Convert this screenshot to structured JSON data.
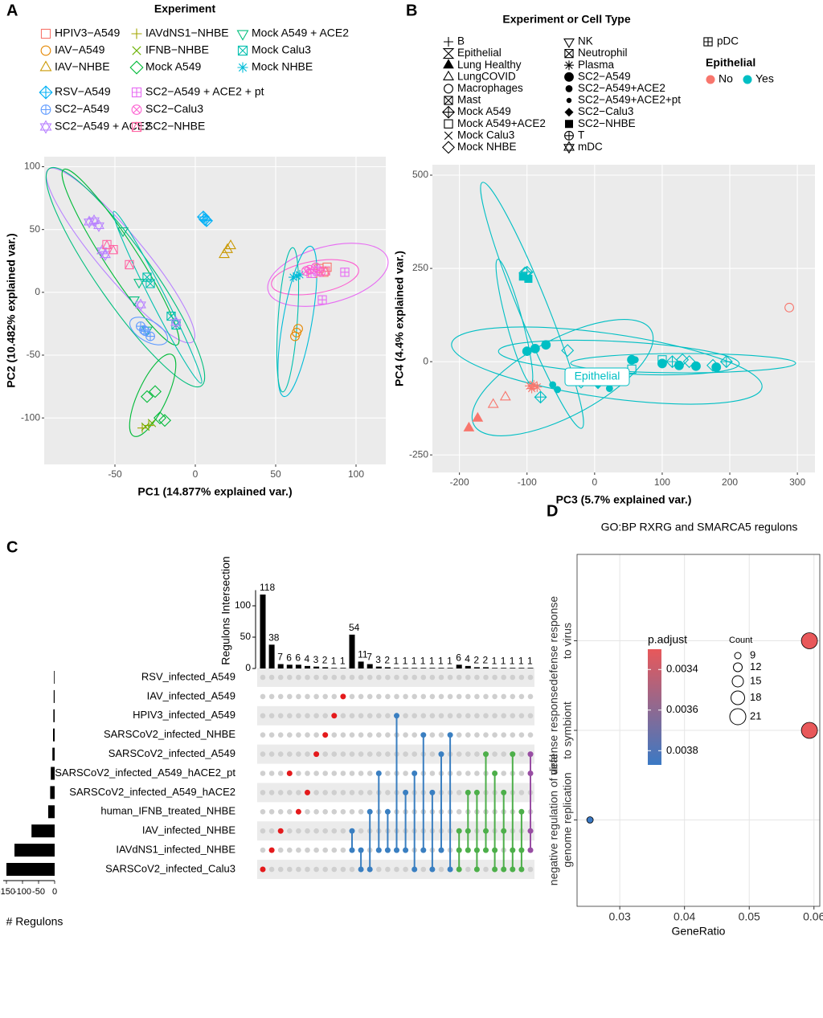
{
  "chart_data": [
    {
      "panel": "A",
      "type": "scatter",
      "legend_title": "Experiment",
      "xlabel": "PC1 (14.877% explained var.)",
      "ylabel": "PC2 (10.482% explained var.)",
      "xlim": [
        -94,
        118.5
      ],
      "ylim": [
        -137,
        108
      ],
      "xticks": [
        -50,
        0,
        50,
        100
      ],
      "yticks": [
        -100,
        -50,
        0,
        50,
        100
      ],
      "grid": true,
      "series": [
        {
          "name": "HPIV3−A549",
          "color": "#F8766D",
          "marker": "square",
          "x": [
            77,
            80,
            73,
            82
          ],
          "values": [
            19,
            16,
            15,
            20
          ]
        },
        {
          "name": "IAV−A549",
          "color": "#E58700",
          "marker": "circle",
          "x": [
            63,
            62,
            64
          ],
          "values": [
            -32,
            -35,
            -29
          ]
        },
        {
          "name": "IAV−NHBE",
          "color": "#C99800",
          "marker": "triangle",
          "x": [
            20,
            22,
            18
          ],
          "values": [
            34,
            37,
            30
          ]
        },
        {
          "name": "IAVdNS1−NHBE",
          "color": "#A3A500",
          "marker": "plus",
          "x": [
            -33,
            -29
          ],
          "values": [
            -108,
            -106
          ]
        },
        {
          "name": "IFNB−NHBE",
          "color": "#6BB100",
          "marker": "cross",
          "x": [
            -27,
            -31
          ],
          "values": [
            -104,
            -107
          ]
        },
        {
          "name": "Mock A549",
          "color": "#00BA38",
          "marker": "diamond",
          "x": [
            -30,
            -25,
            -22,
            -19
          ],
          "values": [
            -83,
            -79,
            -100,
            -102
          ]
        },
        {
          "name": "Mock A549 + ACE2",
          "color": "#00BF7D",
          "marker": "triangle-down",
          "x": [
            -45,
            -38,
            -35,
            -30
          ],
          "values": [
            49,
            -6,
            8,
            -30
          ]
        },
        {
          "name": "Mock Calu3",
          "color": "#00C0AF",
          "marker": "square-cross",
          "x": [
            -30,
            -28,
            -15,
            -12
          ],
          "values": [
            12,
            7,
            -19,
            -26
          ]
        },
        {
          "name": "Mock NHBE",
          "color": "#00BCD8",
          "marker": "asterisk",
          "x": [
            61,
            63,
            65
          ],
          "values": [
            12,
            13,
            14
          ]
        },
        {
          "name": "RSV−A549",
          "color": "#00B0F6",
          "marker": "diamond-plus",
          "x": [
            5,
            7,
            6
          ],
          "values": [
            60,
            57,
            58
          ]
        },
        {
          "name": "SC2−A549",
          "color": "#619CFF",
          "marker": "circle-plus",
          "x": [
            -34,
            -31,
            -28,
            -32
          ],
          "values": [
            -27,
            -31,
            -35,
            -30
          ]
        },
        {
          "name": "SC2−A549 + ACE2",
          "color": "#B983FF",
          "marker": "star6",
          "x": [
            -66,
            -63,
            -60,
            -58,
            -56,
            -34,
            -12
          ],
          "values": [
            56,
            57,
            53,
            33,
            30,
            -10,
            -24
          ]
        },
        {
          "name": "SC2−A549 + ACE2 + pt",
          "color": "#E76BF3",
          "marker": "square-plus",
          "x": [
            79,
            93,
            72,
            76
          ],
          "values": [
            -6,
            16,
            15,
            17
          ]
        },
        {
          "name": "SC2−Calu3",
          "color": "#FD61D1",
          "marker": "circle-cross",
          "x": [
            75,
            71,
            78,
            69
          ],
          "values": [
            20,
            18,
            16,
            17
          ]
        },
        {
          "name": "SC2−NHBE",
          "color": "#FF67A4",
          "marker": "square-triangle",
          "x": [
            -41,
            -51,
            -55,
            81
          ],
          "values": [
            22,
            34,
            38,
            17
          ]
        }
      ]
    },
    {
      "panel": "B",
      "type": "scatter",
      "legend_title": "Experiment or Cell Type",
      "color_legend_title": "Epithelial",
      "groups": [
        {
          "name": "No",
          "color": "#F8766D"
        },
        {
          "name": "Yes",
          "color": "#00BFC4"
        }
      ],
      "annotation": "Epithelial",
      "xlabel": "PC3 (5.7% explained var.)",
      "ylabel": "PC4 (4.4% explained var.)",
      "xlim": [
        -240,
        326
      ],
      "ylim": [
        -297,
        528
      ],
      "xticks": [
        -200,
        -100,
        0,
        100,
        200,
        300
      ],
      "yticks": [
        -250,
        0,
        250,
        500
      ],
      "grid": true,
      "series": [
        {
          "name": "B",
          "marker": "plus",
          "group": "No",
          "x": [],
          "values": []
        },
        {
          "name": "Epithelial",
          "marker": "hourglass",
          "group": "Yes",
          "x": [],
          "values": []
        },
        {
          "name": "Lung Healthy",
          "marker": "filled-triangle",
          "group": "No",
          "x": [
            -186,
            -173
          ],
          "values": [
            -178,
            -152
          ]
        },
        {
          "name": "LungCOVID",
          "marker": "triangle",
          "group": "No",
          "x": [
            -150,
            -132
          ],
          "values": [
            -115,
            -95
          ]
        },
        {
          "name": "Macrophages",
          "marker": "circle",
          "group": "No",
          "x": [
            288
          ],
          "values": [
            145
          ]
        },
        {
          "name": "Mast",
          "marker": "square-cross",
          "group": "No",
          "x": [],
          "values": []
        },
        {
          "name": "Mock A549",
          "marker": "diamond-plus",
          "group": "Yes",
          "x": [
            -80,
            -30,
            115,
            195,
            -100
          ],
          "values": [
            -95,
            -40,
            0,
            0,
            240
          ]
        },
        {
          "name": "Mock A549+ACE2",
          "marker": "square",
          "group": "Yes",
          "x": [
            55,
            100,
            30
          ],
          "values": [
            -20,
            5,
            -30
          ]
        },
        {
          "name": "Mock Calu3",
          "marker": "cross",
          "group": "Yes",
          "x": [],
          "values": []
        },
        {
          "name": "Mock NHBE",
          "marker": "diamond",
          "group": "Yes",
          "x": [
            -103,
            -40,
            130,
            175,
            -20,
            140
          ],
          "values": [
            238,
            30,
            5,
            -10,
            -55,
            0
          ]
        },
        {
          "name": "NK",
          "marker": "triangle-down",
          "group": "No",
          "x": [],
          "values": []
        },
        {
          "name": "Neutrophil",
          "marker": "square-cross",
          "group": "No",
          "x": [],
          "values": []
        },
        {
          "name": "Plasma",
          "marker": "asterisk",
          "group": "No",
          "x": [
            -96,
            -90,
            -85,
            -93
          ],
          "values": [
            -65,
            -62,
            -68,
            -72
          ]
        },
        {
          "name": "SC2−A549",
          "marker": "filled-circle",
          "group": "Yes",
          "x": [
            -100,
            -88,
            -72,
            55,
            100,
            125,
            150,
            180
          ],
          "values": [
            28,
            35,
            45,
            5,
            -5,
            -10,
            -12,
            -15
          ]
        },
        {
          "name": "SC2−A549+ACE2",
          "marker": "filled-circle-mid",
          "group": "Yes",
          "x": [
            -62,
            22,
            60,
            -55
          ],
          "values": [
            -62,
            -72,
            5,
            -75
          ]
        },
        {
          "name": "SC2−A549+ACE2+pt",
          "marker": "filled-circle-small",
          "group": "Yes",
          "x": [
            -40,
            15
          ],
          "values": [
            -45,
            -55
          ]
        },
        {
          "name": "SC2−Calu3",
          "marker": "filled-diamond",
          "group": "Yes",
          "x": [
            -35,
            5
          ],
          "values": [
            -50,
            -62
          ]
        },
        {
          "name": "SC2−NHBE",
          "marker": "filled-square",
          "group": "Yes",
          "x": [
            -106,
            -98
          ],
          "values": [
            228,
            222
          ]
        },
        {
          "name": "T",
          "marker": "circle-plus",
          "group": "No",
          "x": [],
          "values": []
        },
        {
          "name": "mDC",
          "marker": "star6",
          "group": "No",
          "x": [],
          "values": []
        },
        {
          "name": "pDC",
          "marker": "square-plus",
          "group": "No",
          "x": [],
          "values": []
        }
      ]
    },
    {
      "panel": "C",
      "type": "upset",
      "sets": [
        "RSV_infected_A549",
        "IAV_infected_A549",
        "HPIV3_infected_A549",
        "SARSCoV2_infected_NHBE",
        "SARSCoV2_infected_A549",
        "SARSCoV2_infected_A549_hACE2_pt",
        "SARSCoV2_infected_A549_hACE2",
        "human_IFNB_treated_NHBE",
        "IAV_infected_NHBE",
        "IAVdNS1_infected_NHBE",
        "SARSCoV2_infected_Calu3"
      ],
      "set_sizes": [
        -2,
        -3,
        -4,
        -5,
        -7,
        -12,
        -14,
        -20,
        -72,
        -125,
        -150
      ],
      "set_size_xlim": [
        -160,
        0
      ],
      "set_size_xticks": [
        -150,
        -100,
        -50,
        0
      ],
      "set_size_xlabel": "# Regulons",
      "ylabel": "Regulons Intersection",
      "ylim": [
        0,
        125
      ],
      "yticks": [
        0,
        50,
        100
      ],
      "degree_colors": [
        "#E41A1C",
        "#3A7FC1",
        "#4DAF4A",
        "#984EA3"
      ],
      "values": [
        118,
        38,
        7,
        6,
        6,
        4,
        3,
        2,
        1,
        1,
        54,
        11,
        7,
        3,
        2,
        1,
        1,
        1,
        1,
        1,
        1,
        1,
        6,
        4,
        2,
        2,
        1,
        1,
        1,
        1,
        1
      ],
      "members": [
        [
          10
        ],
        [
          9
        ],
        [
          8
        ],
        [
          5
        ],
        [
          7
        ],
        [
          6
        ],
        [
          4
        ],
        [
          3
        ],
        [
          2
        ],
        [
          1
        ],
        [
          8,
          9
        ],
        [
          9,
          10
        ],
        [
          7,
          10
        ],
        [
          5,
          9
        ],
        [
          7,
          9
        ],
        [
          2,
          9
        ],
        [
          6,
          9
        ],
        [
          5,
          10
        ],
        [
          3,
          9
        ],
        [
          6,
          10
        ],
        [
          4,
          9
        ],
        [
          3,
          10
        ],
        [
          8,
          9,
          10
        ],
        [
          6,
          8,
          9
        ],
        [
          6,
          9,
          10
        ],
        [
          4,
          8,
          9
        ],
        [
          5,
          9,
          10
        ],
        [
          6,
          8,
          10
        ],
        [
          4,
          9,
          10
        ],
        [
          7,
          9,
          10
        ],
        [
          4,
          5,
          8,
          9
        ]
      ]
    },
    {
      "panel": "D",
      "type": "dot",
      "title": "GO:BP RXRG and SMARCA5 regulons",
      "categories": [
        [
          "defense response",
          "to virus"
        ],
        [
          "defense response",
          "to symbiont"
        ],
        [
          "negative regulation of viral",
          "genome replication"
        ]
      ],
      "values": [
        0.0593,
        0.0593,
        0.0254
      ],
      "counts": [
        21,
        21,
        9
      ],
      "p_adjust": [
        0.0033,
        0.0033,
        0.00387
      ],
      "xlabel": "GeneRatio",
      "xlim": [
        0.0234,
        0.0609
      ],
      "xticks": [
        0.03,
        0.04,
        0.05,
        0.06
      ],
      "grid": true,
      "color_legend": {
        "title": "p.adjust",
        "lim": [
          0.0033,
          0.00387
        ],
        "ticks": [
          0.0034,
          0.0036,
          0.0038
        ],
        "colors": [
          "#E8585A",
          "#3B79C4"
        ]
      },
      "size_legend": {
        "title": "Count",
        "ticks": [
          9,
          12,
          15,
          18,
          21
        ]
      }
    }
  ]
}
